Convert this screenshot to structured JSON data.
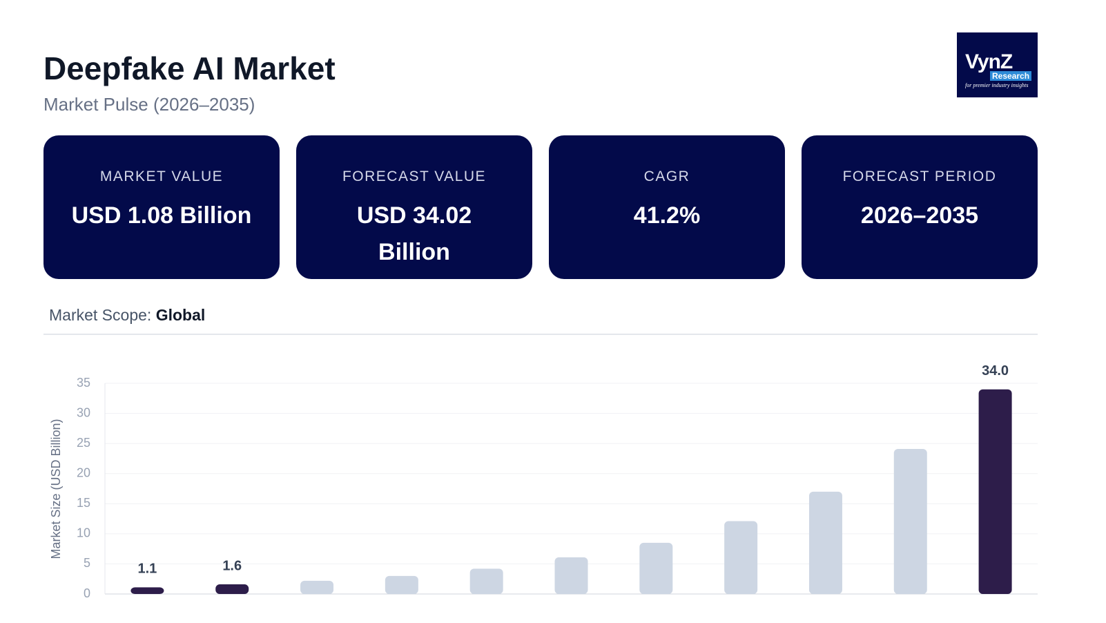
{
  "header": {
    "title": "Deepfake AI Market",
    "subtitle": "Market Pulse (2026–2035)"
  },
  "logo": {
    "name": "VynZ",
    "sub": "Research",
    "tagline": "for premier industry insights"
  },
  "cards": [
    {
      "label": "MARKET VALUE",
      "value": "USD 1.08 Billion"
    },
    {
      "label": "FORECAST VALUE",
      "value": "USD 34.02 Billion"
    },
    {
      "label": "CAGR",
      "value": "41.2%"
    },
    {
      "label": "FORECAST PERIOD",
      "value": "2026–2035"
    }
  ],
  "scope": {
    "label": "Market Scope:",
    "value": "Global"
  },
  "chart_data": {
    "type": "bar",
    "y_label": "Market Size (USD Billion)",
    "categories": [
      null,
      null,
      null,
      null,
      null,
      null,
      null,
      null,
      null,
      null,
      null
    ],
    "values": [
      1.1,
      1.6,
      2.2,
      3.0,
      4.2,
      6.1,
      8.5,
      12.1,
      17.0,
      24.1,
      34.0
    ],
    "value_labels": [
      "1.1",
      "1.6",
      null,
      null,
      null,
      null,
      null,
      null,
      null,
      null,
      "34.0"
    ],
    "colors": [
      "#2d1d4a",
      "#2d1d4a",
      "#cdd6e3",
      "#cdd6e3",
      "#cdd6e3",
      "#cdd6e3",
      "#cdd6e3",
      "#cdd6e3",
      "#cdd6e3",
      "#cdd6e3",
      "#2d1d4a"
    ],
    "ylim": [
      0,
      35
    ],
    "yticks": [
      0,
      5,
      10,
      15,
      20,
      25,
      30,
      35
    ],
    "grid": true
  }
}
